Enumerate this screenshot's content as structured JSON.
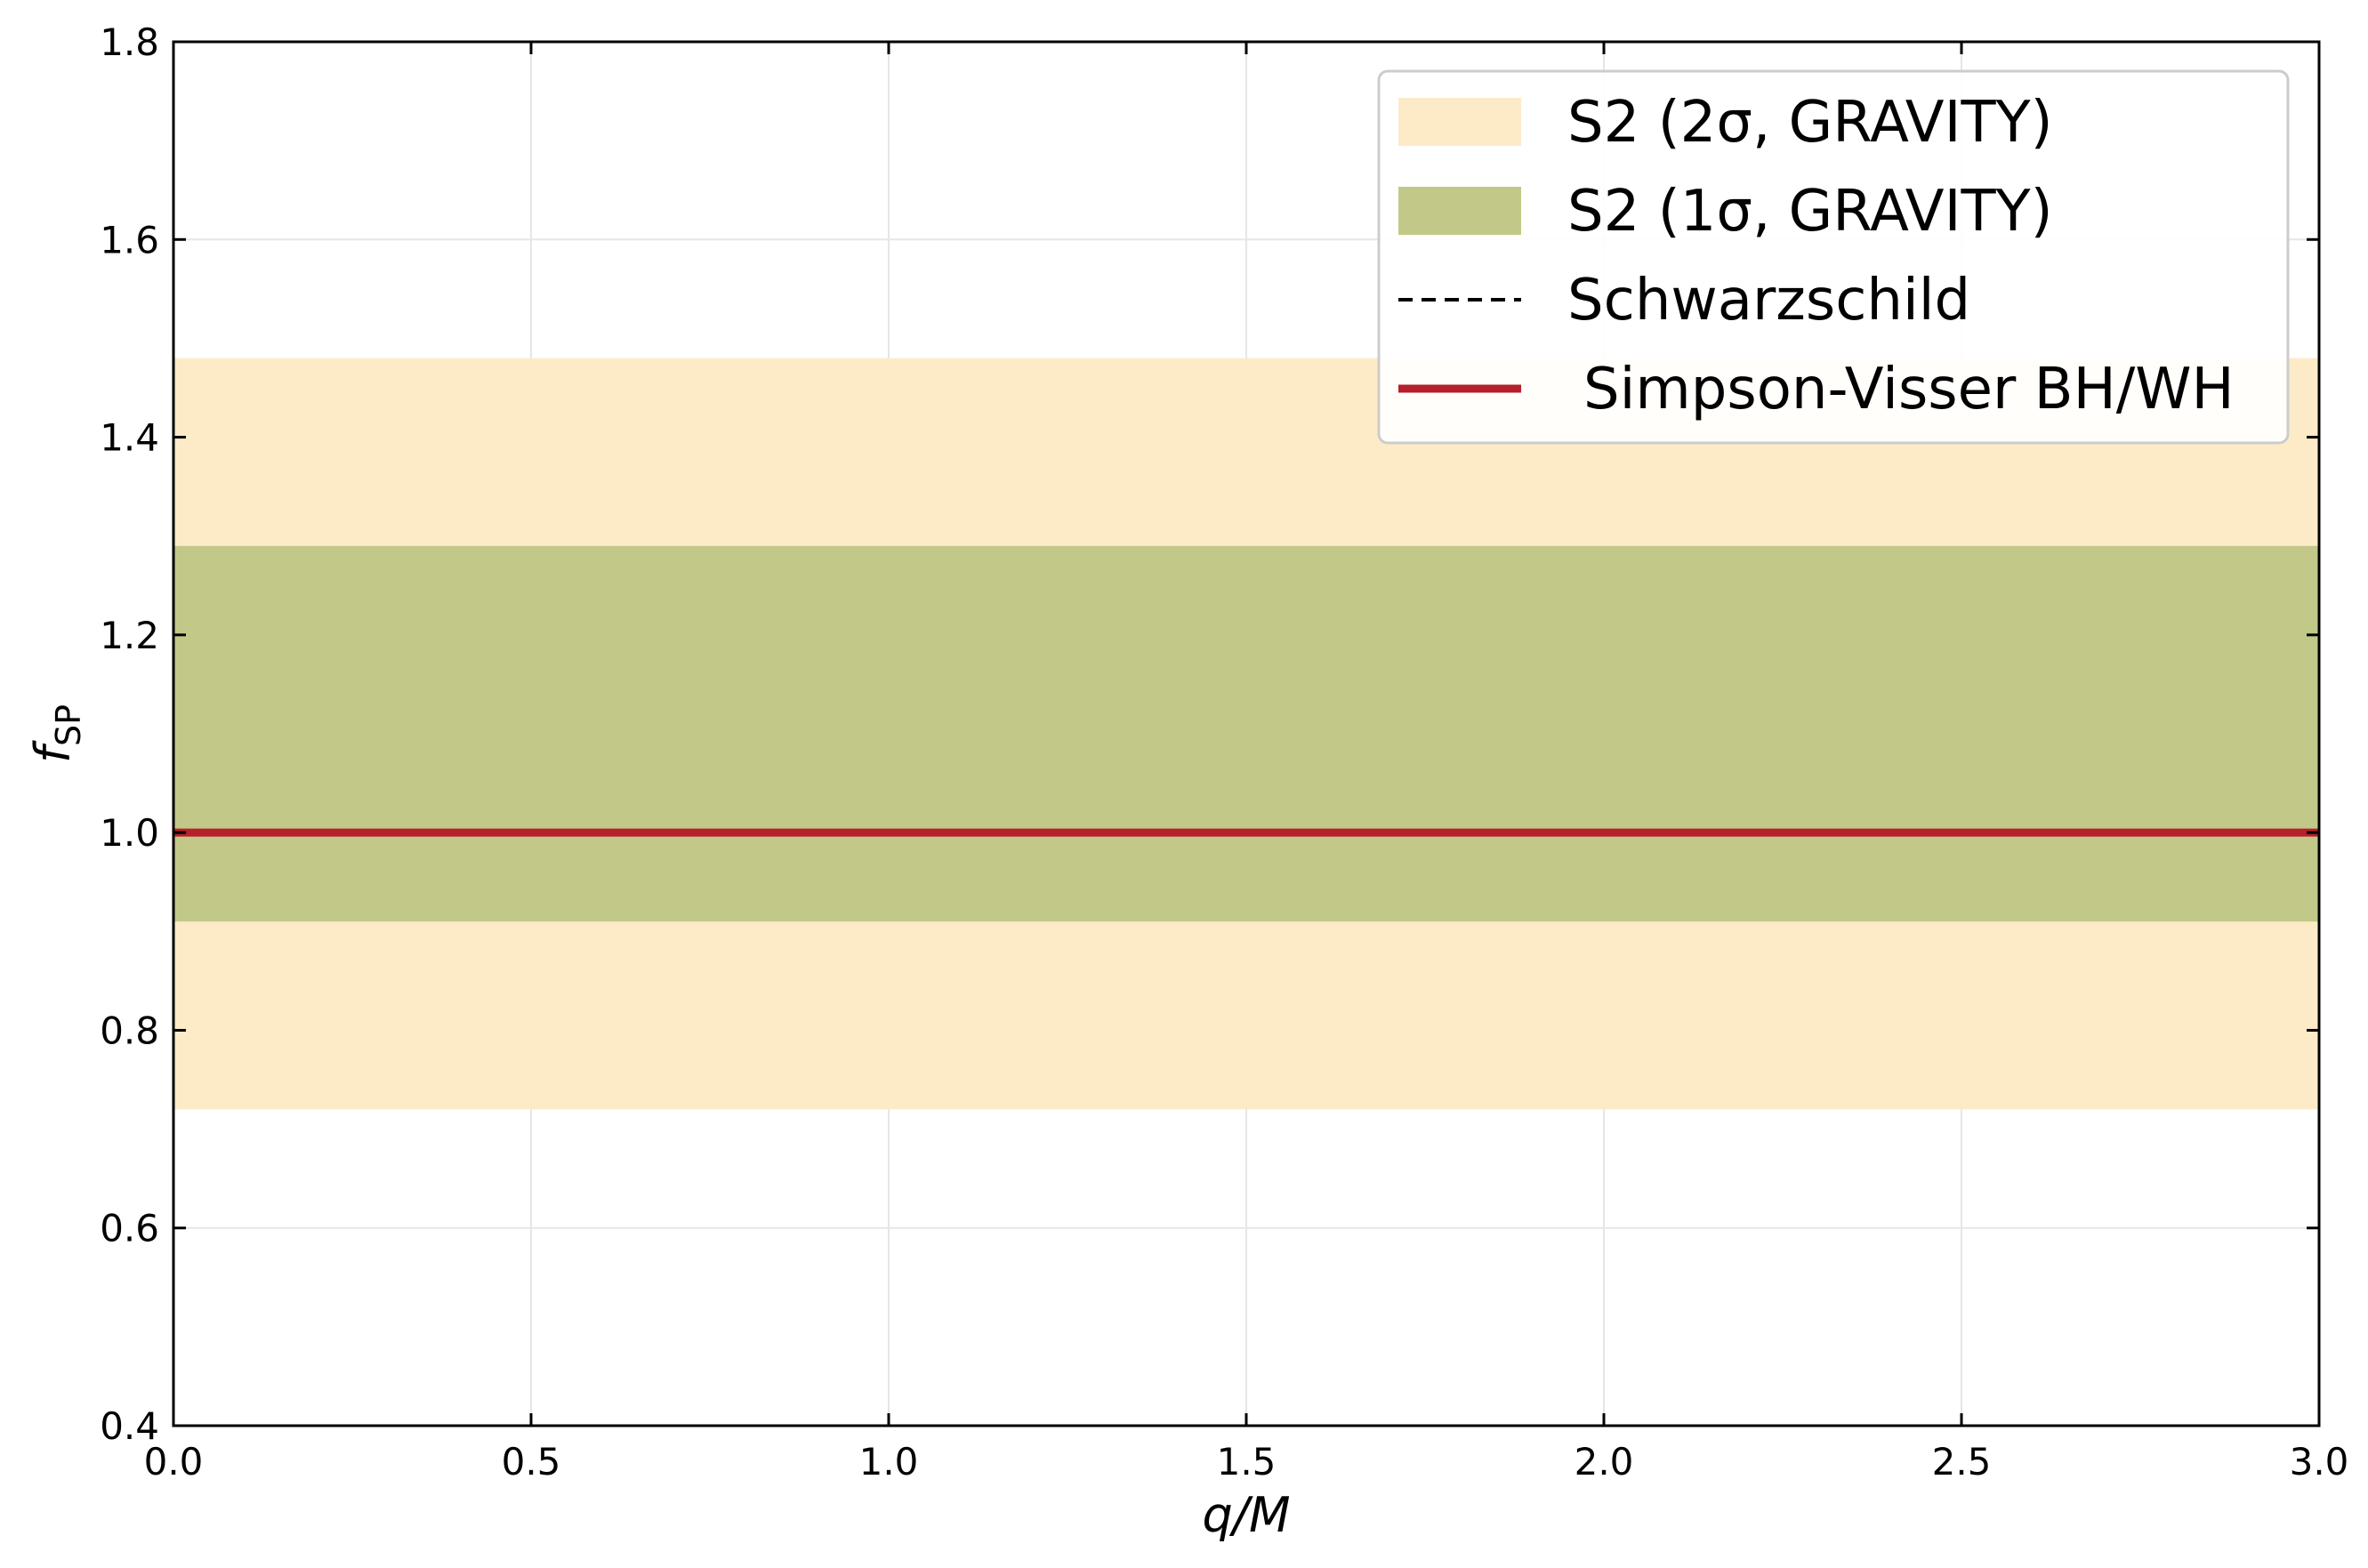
{
  "chart_data": {
    "type": "area",
    "title": "",
    "xlabel": "q/M",
    "ylabel_main": "f",
    "ylabel_sub": "SP",
    "xlim": [
      0.0,
      3.0
    ],
    "ylim": [
      0.4,
      1.8
    ],
    "xticks": [
      "0.0",
      "0.5",
      "1.0",
      "1.5",
      "2.0",
      "2.5",
      "3.0"
    ],
    "yticks": [
      "0.4",
      "0.6",
      "0.8",
      "1.0",
      "1.2",
      "1.4",
      "1.6",
      "1.8"
    ],
    "xtick_values": [
      0.0,
      0.5,
      1.0,
      1.5,
      2.0,
      2.5,
      3.0
    ],
    "ytick_values": [
      0.4,
      0.6,
      0.8,
      1.0,
      1.2,
      1.4,
      1.6,
      1.8
    ],
    "grid": true,
    "legend_position": "top-right",
    "bands": [
      {
        "name": "S2 (2σ, GRAVITY)",
        "ymin": 0.72,
        "ymax": 1.48,
        "color": "#fdebc8"
      },
      {
        "name": "S2 (1σ, GRAVITY)",
        "ymin": 0.91,
        "ymax": 1.29,
        "color": "#c2c988"
      }
    ],
    "series": [
      {
        "name": "Schwarzschild",
        "x": [
          0.0,
          3.0
        ],
        "y": [
          1.0,
          1.0
        ],
        "color": "#000000",
        "style": "dashed"
      },
      {
        "name": "Simpson-Visser BH/WH",
        "x": [
          0.0,
          3.0
        ],
        "y": [
          1.0,
          1.0
        ],
        "color": "#b5202a",
        "style": "solid"
      }
    ]
  }
}
